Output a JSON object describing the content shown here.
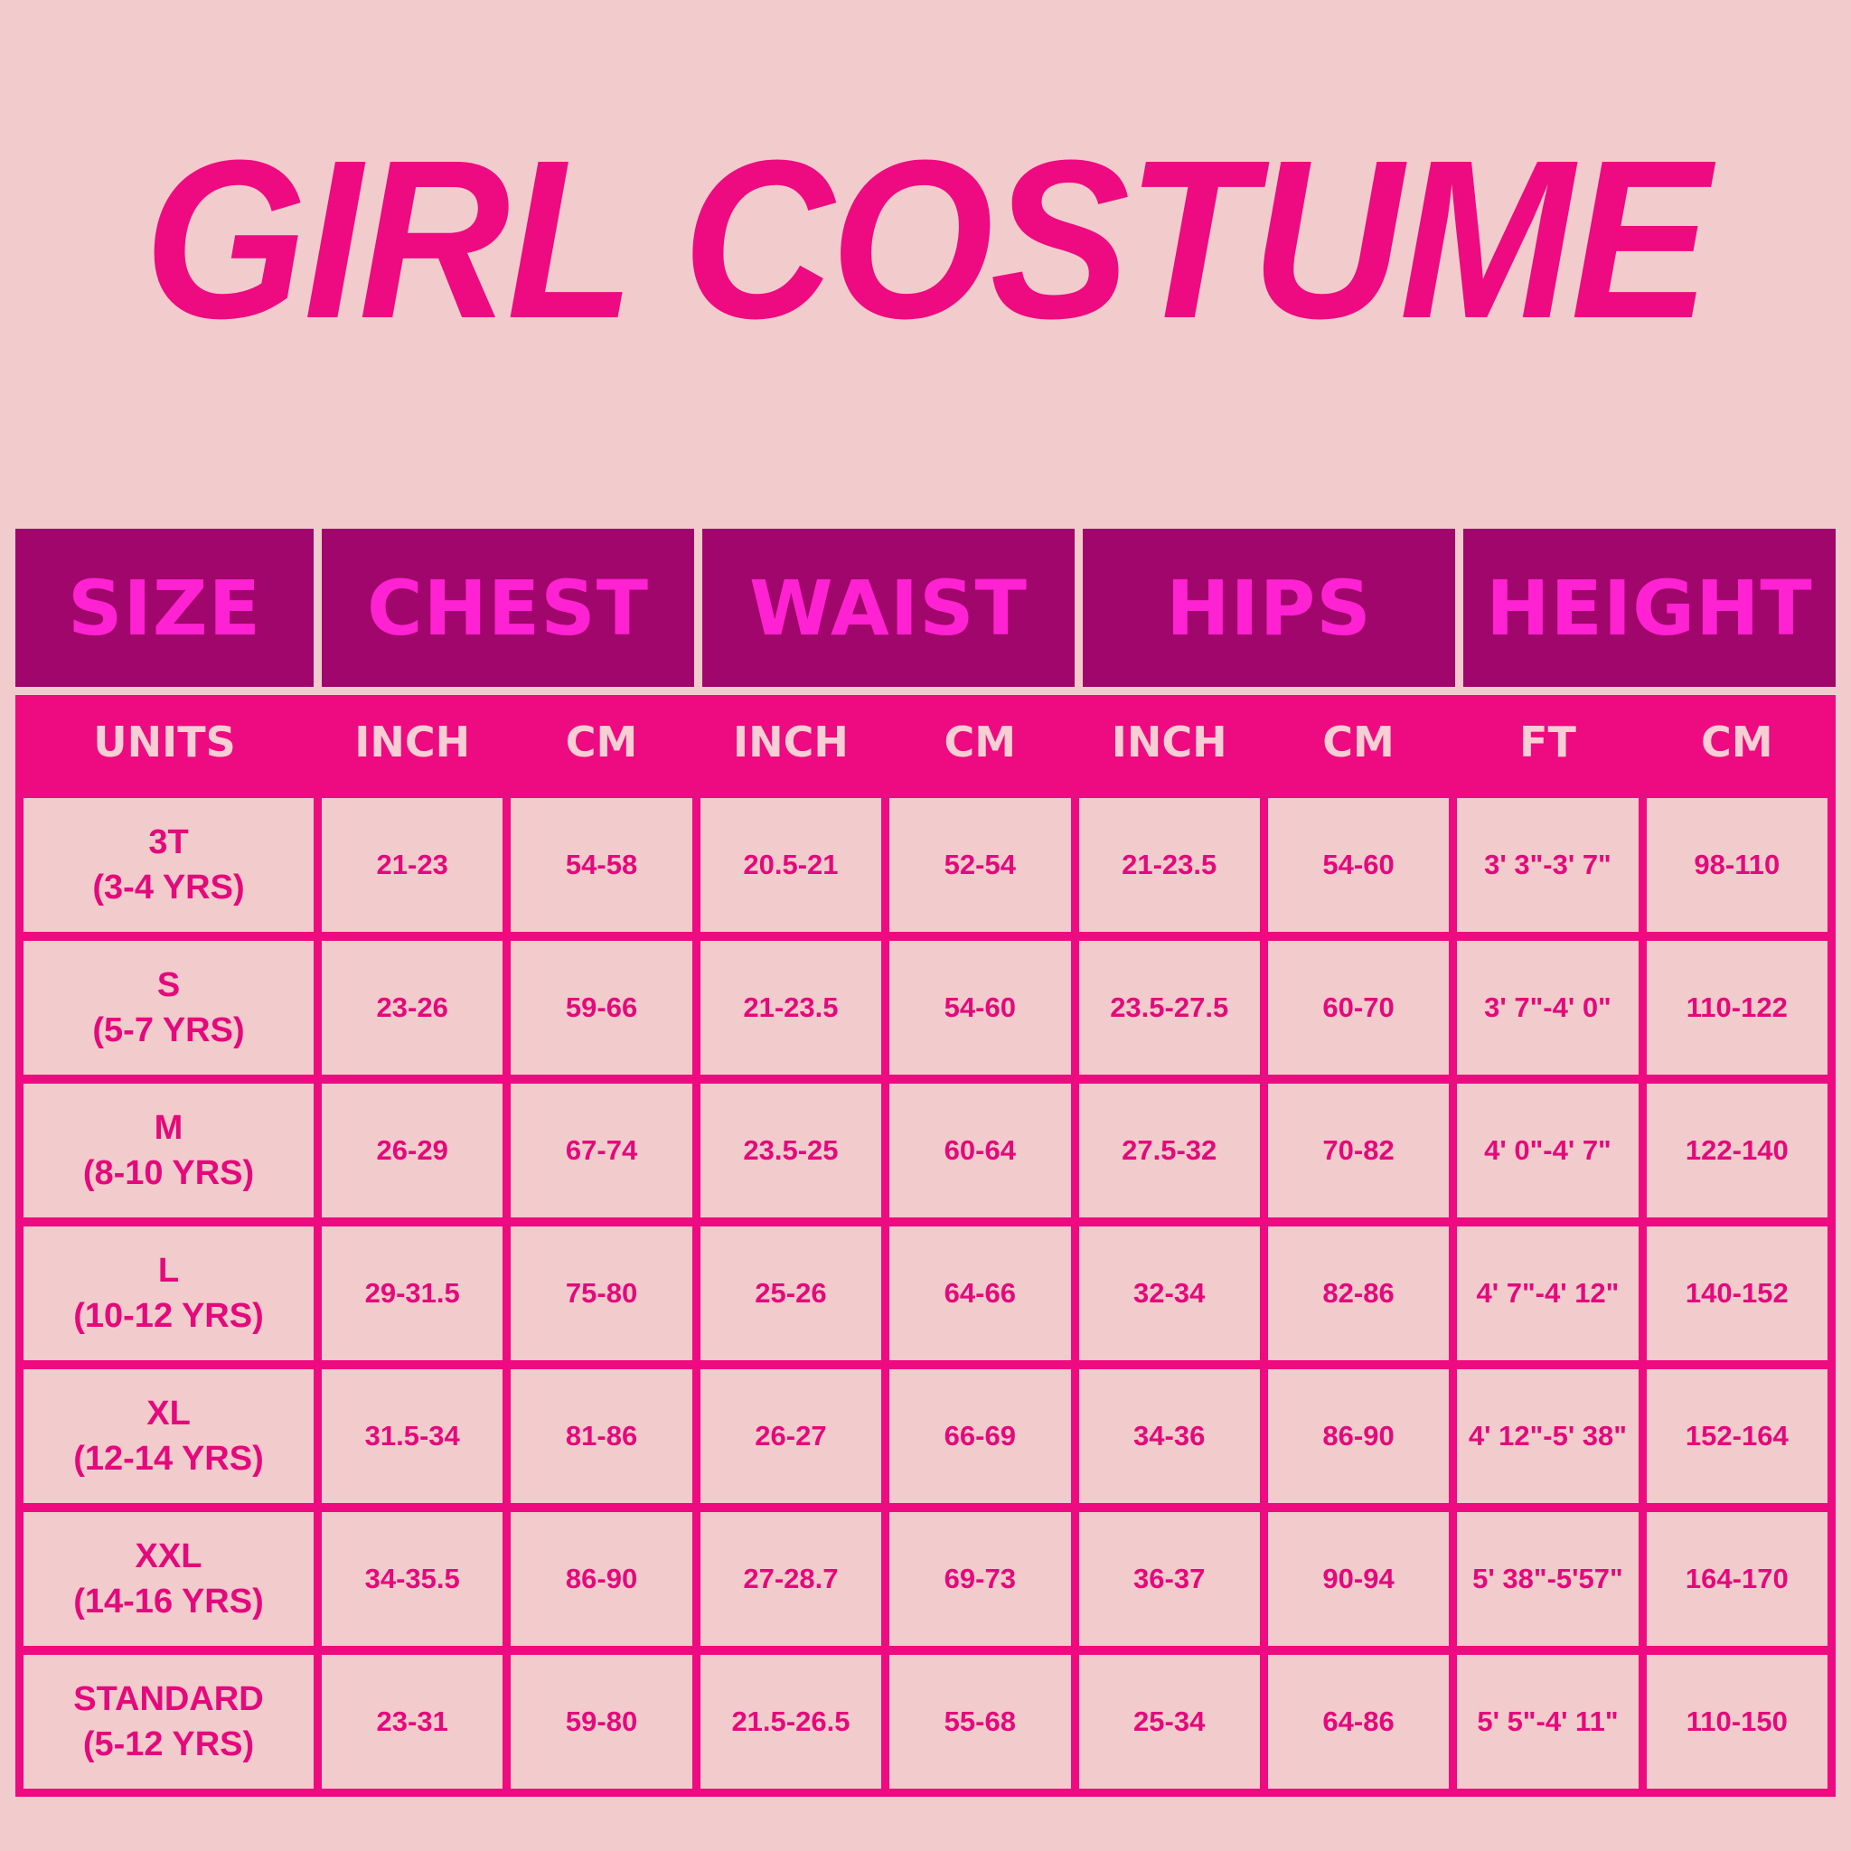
{
  "title": "GIRL COSTUME",
  "colors": {
    "background": "#f2cccc",
    "header_dark": "#a0066b",
    "header_text": "#ff22d2",
    "accent": "#ee0a80"
  },
  "groups": [
    "SIZE",
    "CHEST",
    "WAIST",
    "HIPS",
    "HEIGHT"
  ],
  "units": [
    "UNITS",
    "INCH",
    "CM",
    "INCH",
    "CM",
    "INCH",
    "CM",
    "FT",
    "CM"
  ],
  "rows": [
    {
      "size": "3T",
      "age": "(3-4 YRS)",
      "values": [
        "21-23",
        "54-58",
        "20.5-21",
        "52-54",
        "21-23.5",
        "54-60",
        "3' 3\"-3' 7\"",
        "98-110"
      ]
    },
    {
      "size": "S",
      "age": "(5-7 YRS)",
      "values": [
        "23-26",
        "59-66",
        "21-23.5",
        "54-60",
        "23.5-27.5",
        "60-70",
        "3' 7\"-4' 0\"",
        "110-122"
      ]
    },
    {
      "size": "M",
      "age": "(8-10 YRS)",
      "values": [
        "26-29",
        "67-74",
        "23.5-25",
        "60-64",
        "27.5-32",
        "70-82",
        "4' 0\"-4' 7\"",
        "122-140"
      ]
    },
    {
      "size": "L",
      "age": "(10-12 YRS)",
      "values": [
        "29-31.5",
        "75-80",
        "25-26",
        "64-66",
        "32-34",
        "82-86",
        "4' 7\"-4' 12\"",
        "140-152"
      ]
    },
    {
      "size": "XL",
      "age": "(12-14 YRS)",
      "values": [
        "31.5-34",
        "81-86",
        "26-27",
        "66-69",
        "34-36",
        "86-90",
        "4' 12\"-5' 38\"",
        "152-164"
      ]
    },
    {
      "size": "XXL",
      "age": "(14-16 YRS)",
      "values": [
        "34-35.5",
        "86-90",
        "27-28.7",
        "69-73",
        "36-37",
        "90-94",
        "5' 38\"-5'57\"",
        "164-170"
      ]
    },
    {
      "size": "STANDARD",
      "age": "(5-12 YRS)",
      "values": [
        "23-31",
        "59-80",
        "21.5-26.5",
        "55-68",
        "25-34",
        "64-86",
        "5' 5\"-4' 11\"",
        "110-150"
      ]
    }
  ]
}
